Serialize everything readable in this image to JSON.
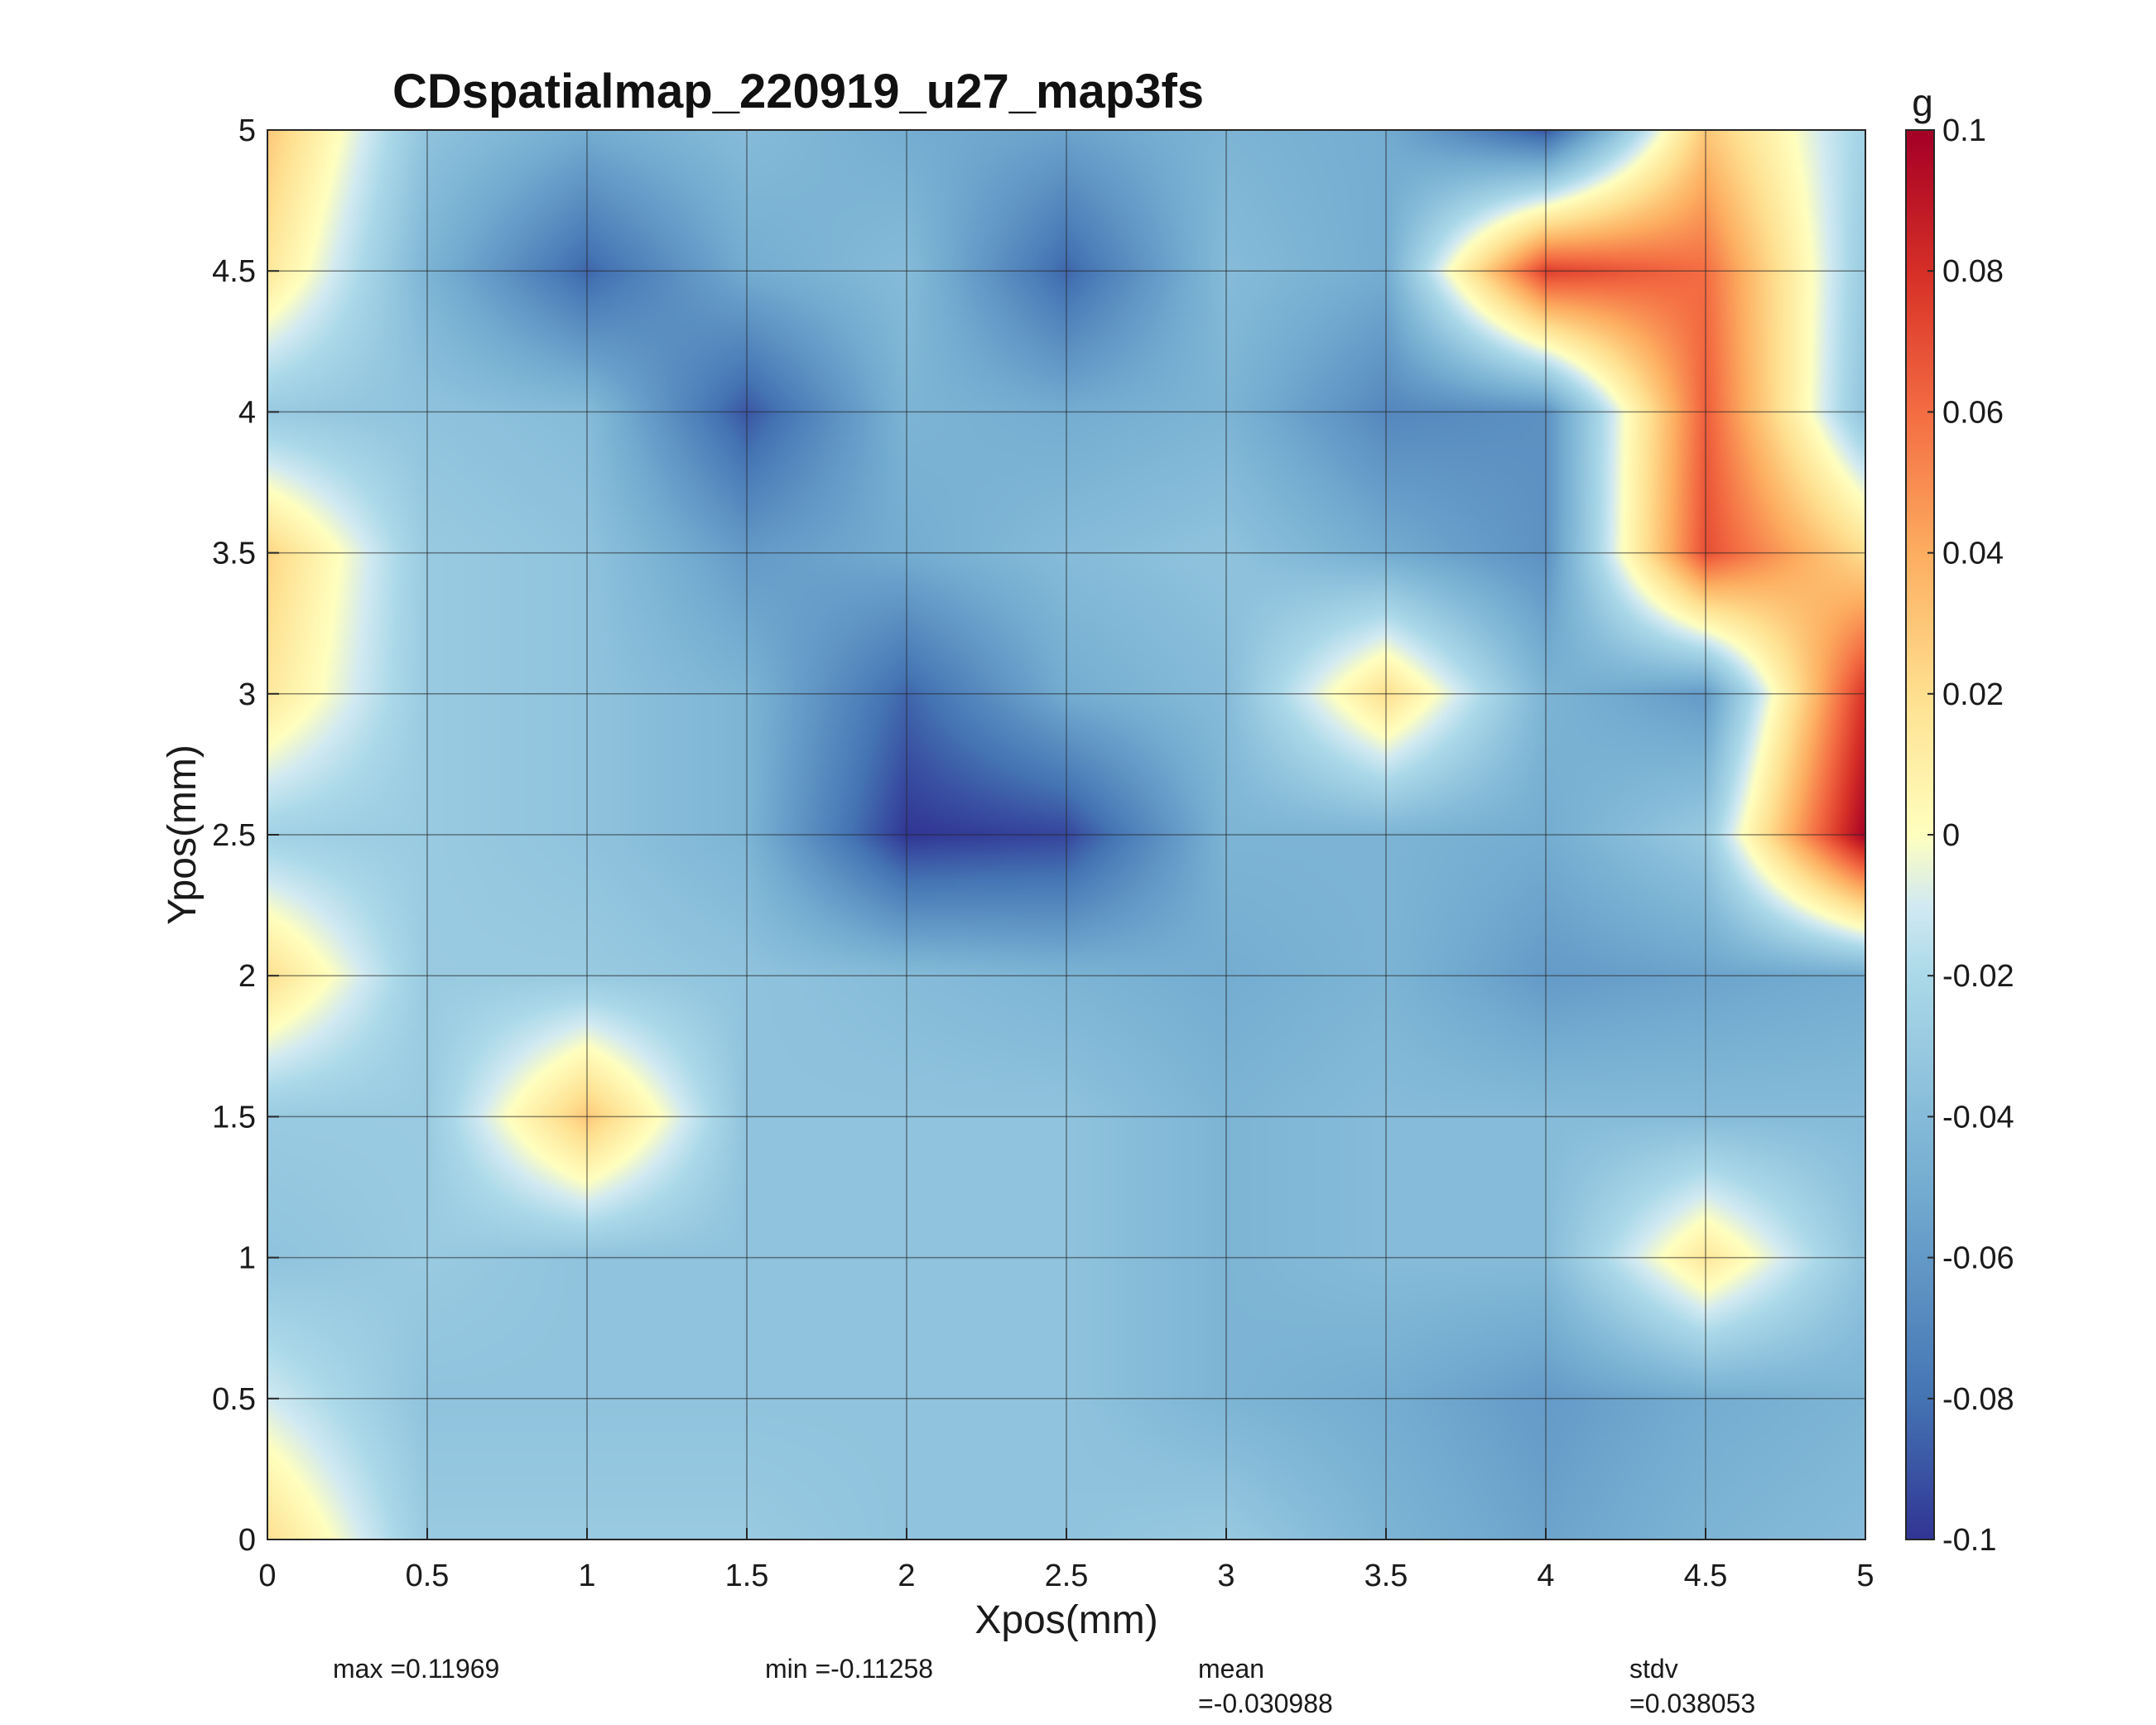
{
  "chart_data": {
    "type": "heatmap",
    "title": "CDspatialmap_220919_u27_map3fs",
    "xlabel": "Xpos(mm)",
    "ylabel": "Ypos(mm)",
    "colorbar_label": "g",
    "xlim": [
      0,
      5
    ],
    "ylim": [
      0,
      5
    ],
    "clim": [
      -0.1,
      0.1
    ],
    "colormap": "RdYlBu (reversed)",
    "grid": true,
    "x": [
      0,
      0.5,
      1,
      1.5,
      2,
      2.5,
      3,
      3.5,
      4,
      4.5,
      5
    ],
    "y": [
      0,
      0.5,
      1,
      1.5,
      2,
      2.5,
      3,
      3.5,
      4,
      4.5,
      5
    ],
    "x_ticks": [
      "0",
      "0.5",
      "1",
      "1.5",
      "2",
      "2.5",
      "3",
      "3.5",
      "4",
      "4.5",
      "5"
    ],
    "y_ticks": [
      "0",
      "0.5",
      "1",
      "1.5",
      "2",
      "2.5",
      "3",
      "3.5",
      "4",
      "4.5",
      "5"
    ],
    "colorbar_ticks": [
      "0.1",
      "0.08",
      "0.06",
      "0.04",
      "0.02",
      "0",
      "-0.02",
      "-0.04",
      "-0.06",
      "-0.08",
      "-0.1"
    ],
    "z": [
      [
        0.02,
        -0.03,
        -0.03,
        -0.03,
        -0.035,
        -0.035,
        -0.03,
        -0.045,
        -0.055,
        -0.045,
        -0.04
      ],
      [
        -0.01,
        -0.035,
        -0.035,
        -0.035,
        -0.035,
        -0.035,
        -0.045,
        -0.05,
        -0.06,
        -0.05,
        -0.045
      ],
      [
        -0.035,
        -0.03,
        -0.035,
        -0.035,
        -0.035,
        -0.035,
        -0.045,
        -0.04,
        -0.04,
        0.015,
        -0.035
      ],
      [
        -0.03,
        -0.03,
        0.03,
        -0.035,
        -0.035,
        -0.035,
        -0.045,
        -0.04,
        -0.04,
        -0.04,
        -0.04
      ],
      [
        0.02,
        -0.03,
        -0.03,
        -0.035,
        -0.04,
        -0.045,
        -0.05,
        -0.045,
        -0.06,
        -0.055,
        -0.05
      ],
      [
        -0.025,
        -0.03,
        -0.035,
        -0.045,
        -0.1,
        -0.095,
        -0.045,
        -0.045,
        -0.05,
        -0.03,
        0.1
      ],
      [
        0.015,
        -0.03,
        -0.035,
        -0.045,
        -0.085,
        -0.05,
        -0.04,
        0.02,
        -0.045,
        -0.06,
        0.08
      ],
      [
        0.025,
        -0.03,
        -0.035,
        -0.06,
        -0.05,
        -0.04,
        -0.035,
        -0.05,
        -0.065,
        0.07,
        0.02
      ],
      [
        -0.03,
        -0.035,
        -0.04,
        -0.09,
        -0.045,
        -0.05,
        -0.045,
        -0.07,
        -0.065,
        0.065,
        -0.035
      ],
      [
        0.015,
        -0.045,
        -0.085,
        -0.05,
        -0.04,
        -0.085,
        -0.04,
        -0.05,
        0.075,
        0.06,
        -0.03
      ],
      [
        0.03,
        -0.035,
        -0.05,
        -0.04,
        -0.05,
        -0.055,
        -0.045,
        -0.05,
        -0.09,
        0.03,
        -0.025
      ]
    ]
  },
  "stats": {
    "max": "max =0.11969",
    "min": "min =-0.11258",
    "mean_label": "mean",
    "mean_value": "=-0.030988",
    "stdv_label": "stdv",
    "stdv_value": "=0.038053"
  }
}
